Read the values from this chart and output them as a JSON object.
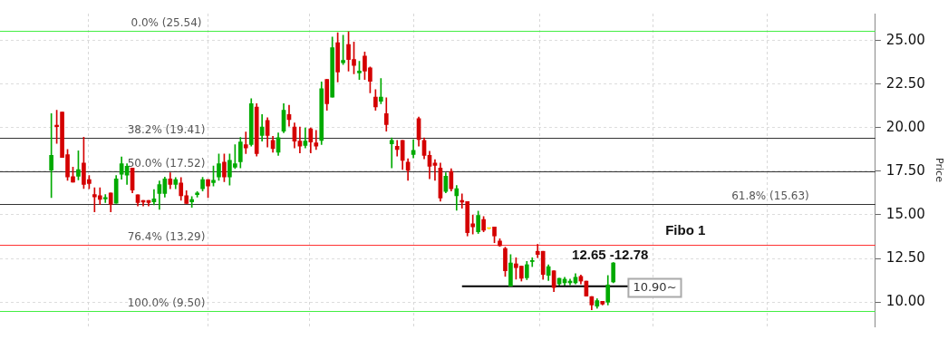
{
  "chart_data": {
    "type": "candlestick",
    "ylabel": "Price",
    "categories": [
      null,
      null,
      null,
      null,
      null,
      null,
      null,
      null,
      null,
      null,
      null,
      null,
      null,
      null,
      null,
      null,
      null,
      null,
      null,
      null,
      null,
      null,
      null,
      null,
      null,
      null,
      null,
      null,
      null,
      null,
      null,
      null,
      null,
      null,
      null,
      null,
      null,
      null,
      null,
      null,
      null,
      null,
      null,
      null,
      null,
      null,
      null,
      null,
      null,
      null,
      null,
      null,
      null,
      null,
      null,
      null,
      null,
      null,
      null,
      null,
      null,
      null,
      null,
      null,
      null,
      null,
      null,
      null,
      null,
      null,
      null,
      null,
      null,
      null,
      null,
      null,
      null,
      null,
      null,
      null,
      null,
      null,
      null,
      null,
      null,
      null,
      null,
      null,
      null,
      null,
      null,
      null,
      null,
      null,
      null,
      null,
      null,
      null,
      null,
      null,
      null,
      null,
      null,
      null,
      null,
      null,
      null,
      null,
      null,
      null,
      null,
      null,
      null,
      null,
      null,
      null,
      null,
      null,
      null,
      null,
      null,
      null,
      null,
      null,
      null,
      null,
      null,
      null,
      null,
      null,
      null,
      null,
      null,
      null,
      null,
      null,
      null,
      null,
      null,
      null,
      null,
      null,
      null,
      null,
      null,
      null,
      null,
      null,
      null,
      null,
      null,
      null,
      null,
      null,
      null,
      null,
      null,
      null,
      null,
      null,
      null,
      null
    ],
    "ohlc": [
      null,
      null,
      null,
      null,
      null,
      null,
      null,
      null,
      null,
      [
        17.57,
        20.81,
        15.99,
        18.41
      ],
      [
        20.14,
        21.0,
        19.1,
        20.06
      ],
      [
        20.9,
        20.9,
        18.29,
        18.29
      ],
      [
        18.46,
        18.75,
        16.98,
        17.18
      ],
      [
        17.2,
        17.74,
        16.88,
        16.88
      ],
      [
        17.22,
        18.67,
        17.01,
        17.6
      ],
      [
        17.98,
        19.46,
        16.51,
        16.75
      ],
      [
        17.03,
        17.26,
        16.5,
        16.8
      ],
      [
        16.16,
        16.55,
        15.17,
        16.03
      ],
      [
        16.1,
        16.55,
        15.59,
        15.89
      ],
      [
        15.92,
        16.16,
        15.71,
        16.0
      ],
      [
        16.26,
        16.26,
        15.17,
        15.6
      ],
      [
        15.67,
        17.26,
        15.67,
        17.07
      ],
      [
        17.33,
        18.32,
        17.04,
        17.93
      ],
      [
        17.28,
        17.93,
        16.75,
        17.79
      ],
      [
        17.69,
        17.69,
        16.26,
        16.42
      ],
      [
        16.15,
        16.15,
        15.51,
        15.7
      ],
      [
        15.83,
        15.83,
        15.51,
        15.73
      ],
      [
        15.83,
        15.83,
        15.51,
        15.7
      ],
      [
        15.75,
        16.45,
        15.57,
        15.92
      ],
      [
        16.23,
        16.95,
        15.32,
        16.74
      ],
      [
        16.23,
        17.17,
        16.02,
        17.07
      ],
      [
        17.07,
        17.41,
        16.5,
        16.75
      ],
      [
        16.75,
        17.14,
        16.5,
        17.03
      ],
      [
        16.83,
        17.14,
        15.83,
        16.1
      ],
      [
        16.1,
        16.39,
        15.65,
        15.65
      ],
      [
        15.75,
        16.05,
        15.43,
        15.88
      ],
      [
        16.16,
        16.34,
        16.02,
        16.26
      ],
      [
        16.5,
        17.15,
        16.37,
        17.03
      ],
      [
        17.03,
        17.03,
        15.99,
        16.66
      ],
      [
        16.85,
        17.81,
        16.66,
        16.98
      ],
      [
        17.18,
        18.49,
        16.98,
        17.93
      ],
      [
        18.03,
        18.49,
        16.9,
        17.18
      ],
      [
        17.18,
        18.49,
        16.71,
        18.13
      ],
      [
        17.74,
        19.03,
        17.66,
        17.93
      ],
      [
        18.05,
        19.45,
        17.69,
        19.18
      ],
      [
        19.03,
        19.75,
        18.52,
        18.84
      ],
      [
        19.03,
        21.67,
        18.94,
        21.38
      ],
      [
        21.19,
        21.38,
        18.37,
        18.51
      ],
      [
        19.56,
        20.76,
        19.23,
        20.04
      ],
      [
        20.42,
        20.57,
        18.89,
        19.56
      ],
      [
        19.27,
        19.51,
        18.6,
        18.8
      ],
      [
        18.6,
        19.71,
        18.41,
        19.43
      ],
      [
        19.8,
        21.38,
        19.71,
        21.0
      ],
      [
        20.76,
        21.29,
        20.09,
        20.47
      ],
      [
        20.04,
        20.28,
        18.84,
        19.23
      ],
      [
        19.23,
        20.04,
        18.56,
        18.94
      ],
      [
        18.99,
        19.99,
        18.84,
        19.23
      ],
      [
        19.94,
        19.99,
        18.56,
        19.18
      ],
      [
        19.13,
        19.85,
        18.75,
        18.94
      ],
      [
        19.27,
        22.63,
        19.03,
        22.24
      ],
      [
        22.77,
        22.77,
        21.0,
        21.38
      ],
      [
        21.76,
        25.21,
        21.76,
        24.59
      ],
      [
        24.88,
        25.45,
        22.63,
        23.2
      ],
      [
        23.73,
        25.31,
        23.63,
        23.87
      ],
      [
        24.78,
        25.5,
        23.25,
        23.92
      ],
      [
        23.92,
        24.92,
        23.1,
        23.58
      ],
      [
        23.15,
        23.82,
        22.77,
        23.25
      ],
      [
        24.11,
        24.35,
        22.77,
        23.25
      ],
      [
        23.44,
        23.49,
        22.0,
        22.67
      ],
      [
        21.76,
        22.19,
        21.0,
        21.19
      ],
      [
        21.52,
        22.82,
        21.38,
        21.76
      ],
      [
        20.81,
        21.72,
        19.8,
        20.18
      ],
      [
        19.08,
        19.42,
        17.69,
        19.27
      ],
      [
        18.94,
        19.27,
        18.37,
        18.75
      ],
      [
        19.27,
        19.27,
        17.6,
        18.13
      ],
      [
        18.03,
        18.22,
        16.98,
        17.55
      ],
      [
        18.46,
        19.32,
        18.27,
        18.7
      ],
      [
        20.52,
        20.62,
        18.94,
        19.32
      ],
      [
        19.27,
        19.42,
        18.22,
        18.41
      ],
      [
        18.41,
        18.65,
        17.07,
        17.79
      ],
      [
        17.98,
        18.17,
        16.98,
        17.84
      ],
      [
        17.69,
        17.98,
        15.78,
        15.97
      ],
      [
        16.35,
        17.41,
        16.26,
        17.22
      ],
      [
        17.49,
        17.65,
        16.37,
        16.5
      ],
      [
        16.1,
        16.69,
        15.27,
        16.5
      ],
      [
        15.83,
        16.21,
        15.38,
        15.73
      ],
      [
        15.76,
        15.76,
        13.79,
        13.98
      ],
      [
        14.49,
        15.0,
        13.9,
        14.31
      ],
      [
        14.03,
        15.22,
        13.93,
        14.97
      ],
      [
        14.73,
        14.9,
        14.03,
        14.12
      ],
      [
        14.22,
        14.25,
        14.18,
        14.22
      ],
      [
        14.31,
        14.31,
        13.4,
        13.79
      ],
      [
        13.5,
        13.63,
        13.19,
        13.23
      ],
      [
        13.07,
        13.15,
        11.47,
        11.79
      ],
      [
        10.91,
        12.72,
        10.91,
        12.24
      ],
      [
        12.19,
        12.54,
        11.31,
        11.97
      ],
      [
        12.06,
        12.06,
        11.2,
        11.36
      ],
      [
        11.39,
        12.33,
        11.28,
        12.14
      ],
      [
        12.32,
        12.54,
        12.03,
        12.38
      ],
      [
        12.91,
        13.31,
        12.54,
        12.73
      ],
      [
        12.91,
        12.91,
        11.3,
        11.58
      ],
      [
        11.53,
        12.14,
        11.23,
        12.03
      ],
      [
        11.79,
        11.79,
        10.59,
        10.83
      ],
      [
        11.04,
        11.36,
        10.91,
        11.36
      ],
      [
        11.1,
        11.42,
        10.91,
        11.31
      ],
      [
        11.1,
        11.31,
        10.99,
        11.2
      ],
      [
        11.1,
        11.63,
        11.04,
        11.42
      ],
      [
        11.47,
        11.55,
        11.04,
        11.2
      ],
      [
        11.2,
        11.2,
        10.34,
        10.34
      ],
      [
        10.31,
        10.31,
        9.56,
        9.83
      ],
      [
        9.76,
        10.19,
        9.64,
        10.08
      ],
      [
        10.04,
        10.04,
        9.83,
        9.88
      ],
      [
        9.99,
        11.52,
        9.83,
        10.98
      ],
      [
        11.15,
        12.27,
        11.1,
        12.24
      ],
      null,
      null,
      null,
      null,
      null,
      null,
      null,
      null,
      null,
      null,
      null,
      null,
      null,
      null,
      null,
      null,
      null,
      null,
      null,
      null,
      null,
      null,
      null,
      null,
      null,
      null,
      null,
      null,
      null,
      null,
      null,
      null,
      null,
      null,
      null,
      null,
      null,
      null,
      null,
      null,
      null,
      null,
      null,
      null,
      null,
      null,
      null,
      null
    ],
    "colors": [
      null,
      null,
      null,
      null,
      null,
      null,
      null,
      null,
      null,
      "#00aa00",
      "#d40000",
      "#d40000",
      "#d40000",
      "#d40000",
      "#00aa00",
      "#d40000",
      "#d40000",
      "#d40000",
      "#d40000",
      "#00aa00",
      "#d40000",
      "#00aa00",
      "#00aa00",
      "#00aa00",
      "#d40000",
      "#d40000",
      "#d40000",
      "#d40000",
      "#00aa00",
      "#00aa00",
      "#00aa00",
      "#d40000",
      "#00aa00",
      "#d40000",
      "#d40000",
      "#00aa00",
      "#00aa00",
      "#00aa00",
      "#d40000",
      "#00aa00",
      "#00aa00",
      "#d40000",
      "#00aa00",
      "#00aa00",
      "#00aa00",
      "#d40000",
      "#00aa00",
      "#d40000",
      "#00aa00",
      "#d40000",
      "#d40000",
      "#00aa00",
      "#00aa00",
      "#d40000",
      "#d40000",
      "#d40000",
      "#00aa00",
      "#d40000",
      "#d40000",
      "#00aa00",
      "#d40000",
      "#00aa00",
      "#d40000",
      "#00aa00",
      "#d40000",
      "#d40000",
      "#00aa00",
      "#d40000",
      "#d40000",
      "#d40000",
      "#00aa00",
      "#d40000",
      "#00aa00",
      "#d40000",
      "#d40000",
      "#d40000",
      "#00aa00",
      "#d40000",
      "#d40000",
      "#d40000",
      "#d40000",
      "#d40000",
      "#00aa00",
      "#d40000",
      "#00aa00",
      "#d40000",
      "#d40000",
      "#d40000",
      "#00aa00",
      "#d40000",
      "#ffd800",
      "#d40000",
      "#d40000",
      "#d40000",
      "#00aa00",
      "#d40000",
      "#d40000",
      "#00aa00",
      "#00aa00",
      "#d40000",
      "#d40000",
      "#00aa00",
      "#d40000",
      "#00aa00",
      "#00aa00",
      "#00aa00",
      "#00aa00",
      "#d40000",
      "#d40000",
      "#d40000",
      "#00aa00",
      "#d40000",
      "#00aa00",
      "#00aa00",
      null,
      null,
      null,
      null,
      null,
      null,
      null,
      null,
      null,
      null,
      null,
      null,
      null,
      null,
      null,
      null,
      null,
      null,
      null,
      null,
      null,
      null,
      null,
      null,
      null,
      null,
      null,
      null,
      null,
      null,
      null,
      null,
      null,
      null,
      null,
      null,
      null,
      null,
      null,
      null,
      null,
      null,
      null,
      null,
      null,
      null,
      null,
      null
    ],
    "series": [
      {
        "type": "line",
        "color": "#000000",
        "values": [
          null,
          null,
          null,
          null,
          null,
          null,
          null,
          null,
          null,
          null,
          null,
          null,
          null,
          null,
          null,
          null,
          null,
          null,
          null,
          null,
          null,
          null,
          null,
          null,
          null,
          null,
          null,
          null,
          null,
          null,
          null,
          null,
          null,
          null,
          null,
          null,
          null,
          null,
          null,
          null,
          null,
          null,
          null,
          null,
          null,
          null,
          null,
          null,
          null,
          null,
          null,
          null,
          null,
          null,
          null,
          null,
          null,
          null,
          null,
          null,
          null,
          null,
          null,
          null,
          null,
          null,
          null,
          null,
          null,
          null,
          null,
          null,
          null,
          null,
          null,
          null,
          null,
          null,
          null,
          null,
          null,
          null,
          null,
          null,
          null,
          10.9,
          10.9,
          10.9,
          10.9,
          10.9,
          10.9,
          10.9,
          10.9,
          10.9,
          10.9,
          10.9,
          10.9,
          10.9,
          10.9,
          10.9,
          10.9,
          10.9,
          10.9,
          10.9,
          10.9,
          10.9,
          10.9,
          10.9,
          10.9,
          10.9,
          10.9,
          10.9,
          10.9,
          10.9,
          10.9,
          10.9,
          10.9,
          null,
          null,
          null,
          null,
          null,
          null,
          null,
          null,
          null,
          null,
          null,
          null,
          null,
          null,
          null,
          null,
          null,
          null,
          null,
          null,
          null,
          null,
          null,
          null,
          null,
          null,
          null,
          null,
          null,
          null,
          null,
          null,
          null,
          null,
          null,
          null,
          null,
          null,
          null,
          null,
          null,
          null,
          null,
          null,
          null
        ]
      }
    ],
    "ref_lines": [
      {
        "axis": "y",
        "value": 25.54,
        "label": "0.0% (25.54)",
        "color": "#44ee44"
      },
      {
        "axis": "y",
        "value": 19.41,
        "label": "38.2% (19.41)",
        "color": "#333333"
      },
      {
        "axis": "y",
        "value": 17.52,
        "label": "50.0% (17.52)",
        "color": "#333333"
      },
      {
        "axis": "y",
        "value": 15.63,
        "label": "61.8% (15.63)",
        "color": "#333333"
      },
      {
        "axis": "y",
        "value": 13.29,
        "label": "76.4% (13.29)",
        "color": "#ff3333"
      },
      {
        "axis": "y",
        "value": 9.5,
        "label": "100.0% (9.50)",
        "color": "#44ee44"
      }
    ],
    "annotations": [
      "12.65 -12.78",
      "Fibo 1",
      "10.90~"
    ],
    "ylim": [
      8.6,
      26.55
    ],
    "yticks": [
      {
        "value": 10,
        "label": "10.00"
      },
      {
        "value": 12.5,
        "label": "12.50"
      },
      {
        "value": 15,
        "label": "15.00"
      },
      {
        "value": 17.5,
        "label": "17.50"
      },
      {
        "value": 20,
        "label": "20.00"
      },
      {
        "value": 22.5,
        "label": "22.50"
      },
      {
        "value": 25,
        "label": "25.00"
      }
    ],
    "grid": "y",
    "tick_labels": "y"
  }
}
